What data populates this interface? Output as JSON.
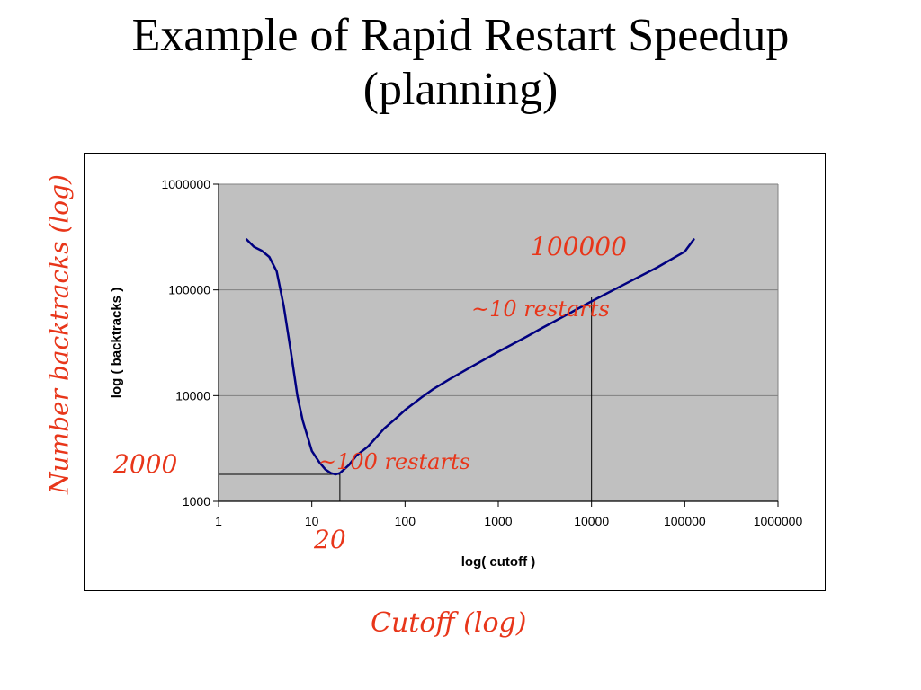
{
  "slide": {
    "title_line1": "Example of Rapid Restart Speedup",
    "title_line2": "(planning)"
  },
  "annotations": {
    "y_outer_label": "Number backtracks (log)",
    "x_outer_label": "Cutoff (log)",
    "label_2000": "2000",
    "label_20": "20",
    "label_100000": "100000",
    "label_100_restarts": "~100 restarts",
    "label_10_restarts": "~10 restarts"
  },
  "colors": {
    "curve": "#000080",
    "plot_background": "#c0c0c0",
    "annotation_text": "#e8361a",
    "guide_lines": "#000000"
  },
  "chart_data": {
    "type": "line",
    "title": "",
    "xlabel": "log( cutoff )",
    "ylabel": "log ( backtracks )",
    "x_scale": "log",
    "y_scale": "log",
    "xlim": [
      1,
      1000000
    ],
    "ylim": [
      1000,
      1000000
    ],
    "x_ticks": [
      1,
      10,
      100,
      1000,
      10000,
      100000,
      1000000
    ],
    "x_tick_labels": [
      "1",
      "10",
      "100",
      "1000",
      "10000",
      "100000",
      "1000000"
    ],
    "y_ticks": [
      1000,
      10000,
      100000,
      1000000
    ],
    "y_tick_labels": [
      "1000",
      "10000",
      "100000",
      "1000000"
    ],
    "grid": "horizontal",
    "legend": "none",
    "series": [
      {
        "x": [
          2,
          2.4,
          2.9,
          3.5,
          4.2,
          5,
          6,
          7,
          8,
          9,
          10,
          12,
          14,
          16,
          18,
          20,
          25,
          30,
          40,
          50,
          60,
          80,
          100,
          150,
          200,
          300,
          500,
          1000,
          2000,
          3000,
          5000,
          10000,
          20000,
          50000,
          100000,
          125000
        ],
        "y": [
          300000,
          255000,
          235000,
          205000,
          150000,
          70000,
          25000,
          10000,
          5800,
          4100,
          3000,
          2350,
          2000,
          1850,
          1800,
          1850,
          2200,
          2700,
          3300,
          4100,
          4900,
          6100,
          7300,
          9600,
          11500,
          14300,
          18500,
          26000,
          36000,
          44000,
          56000,
          78000,
          107000,
          162000,
          230000,
          300000
        ]
      }
    ],
    "guide_points": [
      {
        "x": 20,
        "y": 1800
      },
      {
        "x": 10000,
        "y": 85000
      }
    ]
  }
}
